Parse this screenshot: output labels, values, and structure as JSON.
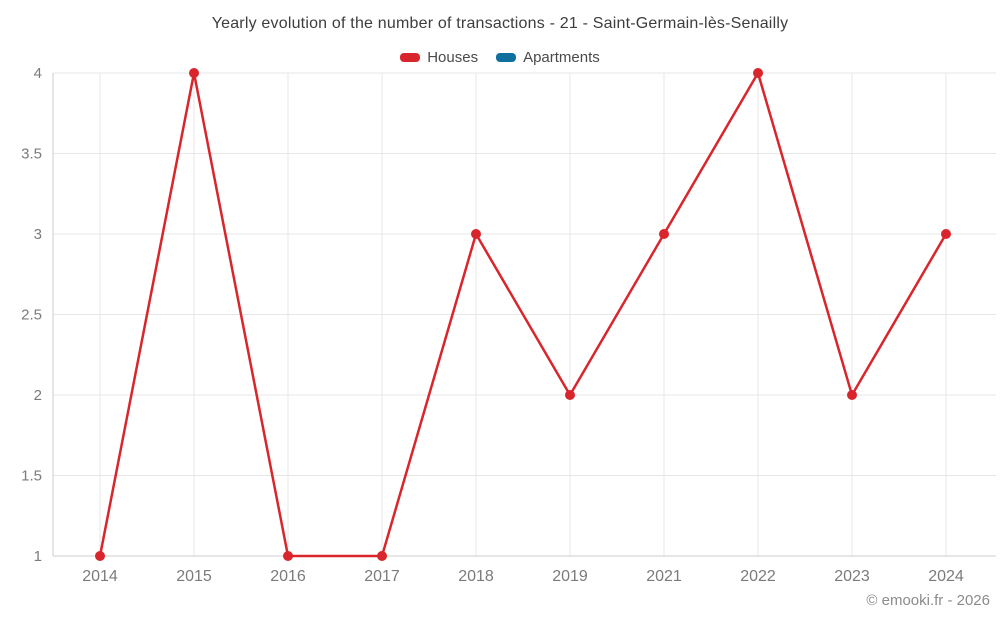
{
  "header": {
    "title": "Yearly evolution of the number of transactions - 21 - Saint-Germain-lès-Senailly"
  },
  "chart_data": {
    "type": "line",
    "title": "Yearly evolution of the number of transactions - 21 - Saint-Germain-lès-Senailly",
    "categories": [
      "2014",
      "2015",
      "2016",
      "2017",
      "2018",
      "2019",
      "2021",
      "2022",
      "2023",
      "2024"
    ],
    "series": [
      {
        "name": "Houses",
        "color": "#d8262c",
        "values": [
          1,
          4,
          1,
          1,
          3,
          2,
          3,
          4,
          2,
          3
        ]
      },
      {
        "name": "Apartments",
        "color": "#0f6f9f",
        "values": []
      }
    ],
    "xlabel": "",
    "ylabel": "",
    "ylim": [
      1,
      4
    ],
    "ytick_step": 0.5,
    "ytick_labels": [
      "1",
      "1.5",
      "2",
      "2.5",
      "3",
      "3.5",
      "4"
    ],
    "grid": true,
    "legend_position": "top"
  },
  "footer": {
    "credit": "© emooki.fr - 2026"
  },
  "colors": {
    "gridline": "#e7e7e7",
    "axis_line": "#cccccc",
    "tick_label": "#7b7b7b",
    "title_text": "#3d3d3d",
    "houses": "#d8262c",
    "apartments": "#0f6f9f"
  }
}
